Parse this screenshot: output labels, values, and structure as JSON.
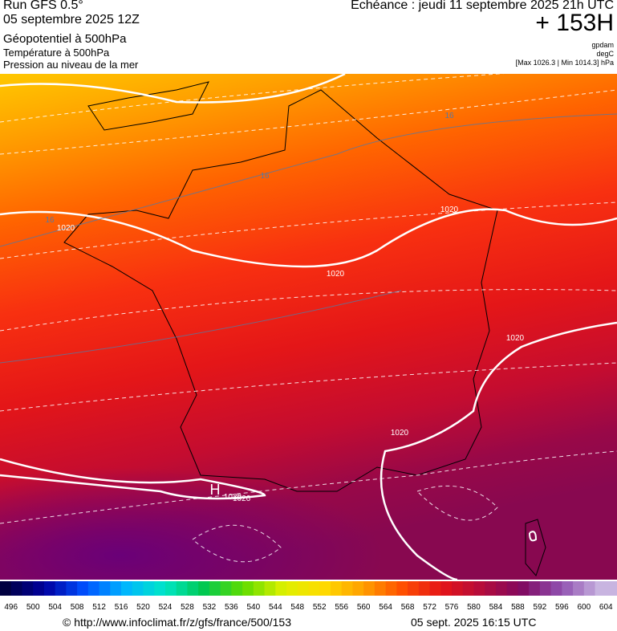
{
  "header": {
    "left": [
      "Run GFS 0.5°",
      "05 septembre 2025 12Z",
      "Géopotentiel à 500hPa",
      "Température à 500hPa",
      "Pression au niveau de la mer"
    ],
    "right": {
      "title": "Echéance : jeudi 11 septembre 2025 21h UTC",
      "lead": "+ 153H",
      "units": [
        "gpdam",
        "degC",
        "[Max 1026.3 | Min 1014.3] hPa"
      ]
    }
  },
  "map": {
    "labels": [
      "16",
      "16",
      "16",
      "1020",
      "1020",
      "1020",
      "1020",
      "1020",
      "1020",
      "H",
      "1026"
    ]
  },
  "colorbar": {
    "labels": [
      496,
      500,
      504,
      508,
      512,
      516,
      520,
      524,
      528,
      532,
      536,
      540,
      544,
      548,
      552,
      556,
      560,
      564,
      568,
      572,
      576,
      580,
      584,
      588,
      592,
      596,
      600,
      604
    ]
  },
  "footer": {
    "url": "© http://www.infoclimat.fr/z/gfs/france/500/153",
    "date": "05 sept. 2025 16:15 UTC"
  }
}
